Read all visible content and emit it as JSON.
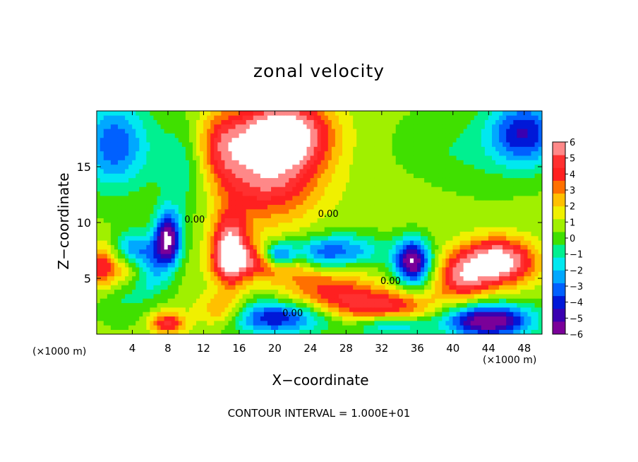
{
  "figure": {
    "title": "zonal velocity",
    "xlabel": "X−coordinate",
    "ylabel": "Z−coordinate",
    "x_unit_left": "(×1000 m)",
    "x_unit_right": "(×1000 m)",
    "contour_note": "CONTOUR INTERVAL = 1.000E+01"
  },
  "chart_data": {
    "type": "heatmap",
    "title": "zonal velocity",
    "xlabel": "X−coordinate",
    "ylabel": "Z−coordinate",
    "x_unit": "(×1000 m)",
    "xlim": [
      0,
      50
    ],
    "ylim": [
      0,
      20
    ],
    "x_ticks": [
      4,
      8,
      12,
      16,
      20,
      24,
      28,
      32,
      36,
      40,
      44,
      48
    ],
    "y_ticks": [
      5,
      10,
      15
    ],
    "colorbar": {
      "ticks": [
        6,
        5,
        4,
        3,
        2,
        1,
        0,
        -1,
        -2,
        -3,
        -4,
        -5,
        -6
      ],
      "range": [
        -6,
        6
      ],
      "colors": [
        "#7a0099",
        "#3a00b0",
        "#0018d8",
        "#0060ff",
        "#00a8ff",
        "#00e8f0",
        "#00f090",
        "#40e000",
        "#a0f000",
        "#f0f000",
        "#ffc000",
        "#ff7000",
        "#ff2020",
        "#ff3030",
        "#ff8888"
      ]
    },
    "contour_labels": [
      {
        "text": "0.00",
        "x": 26,
        "y": 10.5
      },
      {
        "text": "0.00",
        "x": 11,
        "y": 10
      },
      {
        "text": "0.00",
        "x": 33,
        "y": 4.5
      },
      {
        "text": "0.00",
        "x": 22,
        "y": 1.6
      }
    ],
    "contour_interval": "1.000E+01",
    "features": [
      {
        "x": 21,
        "y": 18,
        "v": 7,
        "sx": 5,
        "sy": 3
      },
      {
        "x": 19,
        "y": 14,
        "v": 4.5,
        "sx": 6,
        "sy": 4
      },
      {
        "x": 14,
        "y": 17,
        "v": 3,
        "sx": 3,
        "sy": 3
      },
      {
        "x": 15,
        "y": 7.5,
        "v": 6.5,
        "sx": 2,
        "sy": 3
      },
      {
        "x": 20,
        "y": 6.5,
        "v": 5,
        "sx": 5,
        "sy": 1.5
      },
      {
        "x": 4.5,
        "y": 6,
        "v": 5,
        "sx": 3,
        "sy": 1.5
      },
      {
        "x": 45,
        "y": 6.5,
        "v": 7,
        "sx": 4,
        "sy": 2
      },
      {
        "x": 41,
        "y": 5,
        "v": 4,
        "sx": 3,
        "sy": 2
      },
      {
        "x": 32,
        "y": 2.5,
        "v": 4,
        "sx": 6,
        "sy": 1.5
      },
      {
        "x": 26,
        "y": 4,
        "v": 3,
        "sx": 5,
        "sy": 2
      },
      {
        "x": 14,
        "y": 2,
        "v": 3,
        "sx": 3,
        "sy": 1.5
      },
      {
        "x": 8,
        "y": 1,
        "v": 4,
        "sx": 2,
        "sy": 1
      },
      {
        "x": 0.5,
        "y": 6,
        "v": 3,
        "sx": 1.5,
        "sy": 2
      },
      {
        "x": 8,
        "y": 8.5,
        "v": -7,
        "sx": 1.5,
        "sy": 2.5
      },
      {
        "x": 6,
        "y": 6,
        "v": -5,
        "sx": 2,
        "sy": 2
      },
      {
        "x": 4,
        "y": 7,
        "v": -4,
        "sx": 2,
        "sy": 2
      },
      {
        "x": 20.5,
        "y": 7,
        "v": -7,
        "sx": 2,
        "sy": 1.2
      },
      {
        "x": 24.5,
        "y": 7,
        "v": -4,
        "sx": 3,
        "sy": 1.5
      },
      {
        "x": 35.5,
        "y": 6.5,
        "v": -7,
        "sx": 2,
        "sy": 2
      },
      {
        "x": 28.5,
        "y": 7.5,
        "v": -3,
        "sx": 4,
        "sy": 1.5
      },
      {
        "x": 44,
        "y": 1.2,
        "v": -7,
        "sx": 5,
        "sy": 1.5
      },
      {
        "x": 20,
        "y": 1.5,
        "v": -5,
        "sx": 6,
        "sy": 1.5
      },
      {
        "x": 33,
        "y": 0.8,
        "v": -3,
        "sx": 4,
        "sy": 1
      },
      {
        "x": 2,
        "y": 17,
        "v": -4,
        "sx": 4,
        "sy": 4
      },
      {
        "x": 48,
        "y": 18,
        "v": -5,
        "sx": 4,
        "sy": 3
      },
      {
        "x": 10,
        "y": 15,
        "v": -2,
        "sx": 3,
        "sy": 4
      },
      {
        "x": 40,
        "y": 16,
        "v": -1,
        "sx": 6,
        "sy": 4
      },
      {
        "x": 36,
        "y": 12,
        "v": 0.5,
        "sx": 6,
        "sy": 3
      },
      {
        "x": 3,
        "y": 3,
        "v": -1,
        "sx": 3,
        "sy": 2
      }
    ]
  }
}
